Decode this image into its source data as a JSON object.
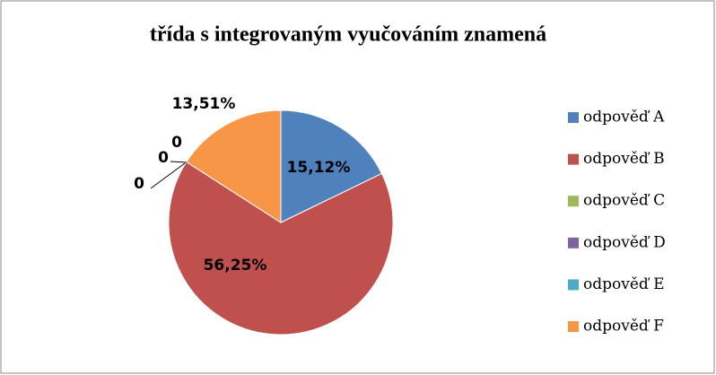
{
  "chart_data": {
    "type": "pie",
    "title": "třída s integrovaným vyučováním  znamená",
    "categories": [
      "odpověď A",
      "odpověď B",
      "odpověď C",
      "odpověď D",
      "odpověď E",
      "odpověď F"
    ],
    "values": [
      15.12,
      56.25,
      0,
      0,
      0,
      13.51
    ],
    "value_labels": [
      "15,12%",
      "56,25%",
      "0",
      "0",
      "0",
      "13,51%"
    ],
    "colors": [
      "#4f81bd",
      "#c0504d",
      "#9bbb59",
      "#8064a2",
      "#4bacc6",
      "#f79646"
    ],
    "legend": "right"
  }
}
